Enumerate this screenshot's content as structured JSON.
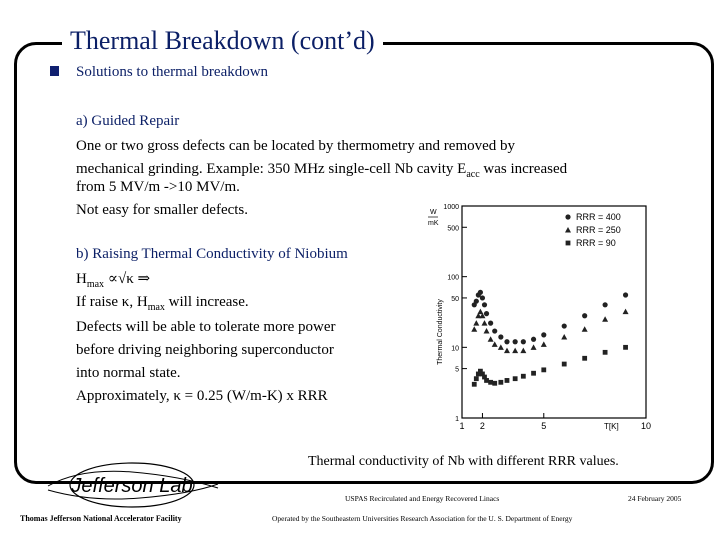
{
  "slide": {
    "title": "Thermal Breakdown (cont’d)",
    "bullet": "Solutions to thermal breakdown",
    "section_a": {
      "heading": "a) Guided Repair",
      "line1": "One or two gross defects can be located by thermometry and removed by",
      "line2": "mechanical grinding. Example: 350 MHz single-cell Nb cavity E",
      "line2_sub": "acc",
      "line2_tail": " was increased",
      "line3": "from 5 MV/m ->10 MV/m.",
      "line4": "Not easy for smaller defects."
    },
    "section_b": {
      "heading": "b) Raising Thermal Conductivity of Niobium",
      "h_label": "H",
      "h_sub": "max",
      "h_rel": " ∝√κ ⇒",
      "raise_prefix": "If raise κ, H",
      "raise_sub": "max",
      "raise_tail": " will increase.",
      "line3": "Defects will be able to tolerate more power",
      "line4": "before driving neighboring superconductor",
      "line5": "into normal state.",
      "line6": "Approximately, κ = 0.25 (W/m-K) x RRR"
    },
    "caption": "Thermal conductivity of Nb with different RRR values."
  },
  "footer": {
    "center_top": "USPAS Recirculated and Energy Recovered Linacs",
    "date": "24 February 2005",
    "left": "Thomas Jefferson National Accelerator Facility",
    "center_bottom": "Operated by the Southeastern Universities Research Association for the U. S. Department of Energy",
    "logo_text": "Jefferson Lab"
  },
  "chart_data": {
    "type": "scatter",
    "title": "",
    "xlabel": "T[K]",
    "ylabel": "Thermal Conductivity",
    "y_unit_top": "W",
    "y_unit_bottom": "mK",
    "x_scale": "linear",
    "y_scale": "log",
    "xlim": [
      1,
      10
    ],
    "ylim": [
      1,
      1000
    ],
    "x_ticks": [
      "1",
      "2",
      "5",
      "10"
    ],
    "y_ticks": [
      "1000",
      "500",
      "100",
      "50",
      "10",
      "5",
      "1"
    ],
    "legend_position": "top-right",
    "series": [
      {
        "name": "RRR = 400",
        "marker": "circle",
        "x": [
          1.6,
          1.7,
          1.8,
          1.9,
          2.0,
          2.1,
          2.2,
          2.4,
          2.6,
          2.9,
          3.2,
          3.6,
          4.0,
          4.5,
          5.0,
          6.0,
          7.0,
          8.0,
          9.0
        ],
        "y": [
          40,
          45,
          55,
          60,
          50,
          40,
          30,
          22,
          17,
          14,
          12,
          12,
          12,
          13,
          15,
          20,
          28,
          40,
          55
        ]
      },
      {
        "name": "RRR = 250",
        "marker": "triangle",
        "x": [
          1.6,
          1.7,
          1.8,
          1.9,
          2.0,
          2.1,
          2.2,
          2.4,
          2.6,
          2.9,
          3.2,
          3.6,
          4.0,
          4.5,
          5.0,
          6.0,
          7.0,
          8.0,
          9.0
        ],
        "y": [
          18,
          22,
          28,
          32,
          28,
          22,
          17,
          13,
          11,
          10,
          9,
          9,
          9,
          10,
          11,
          14,
          18,
          25,
          32
        ]
      },
      {
        "name": "RRR = 90",
        "marker": "square",
        "x": [
          1.6,
          1.7,
          1.8,
          1.9,
          2.0,
          2.1,
          2.2,
          2.4,
          2.6,
          2.9,
          3.2,
          3.6,
          4.0,
          4.5,
          5.0,
          6.0,
          7.0,
          8.0,
          9.0
        ],
        "y": [
          3,
          3.6,
          4.2,
          4.6,
          4.2,
          3.8,
          3.4,
          3.2,
          3.1,
          3.2,
          3.4,
          3.6,
          3.9,
          4.3,
          4.8,
          5.8,
          7,
          8.5,
          10
        ]
      }
    ]
  }
}
